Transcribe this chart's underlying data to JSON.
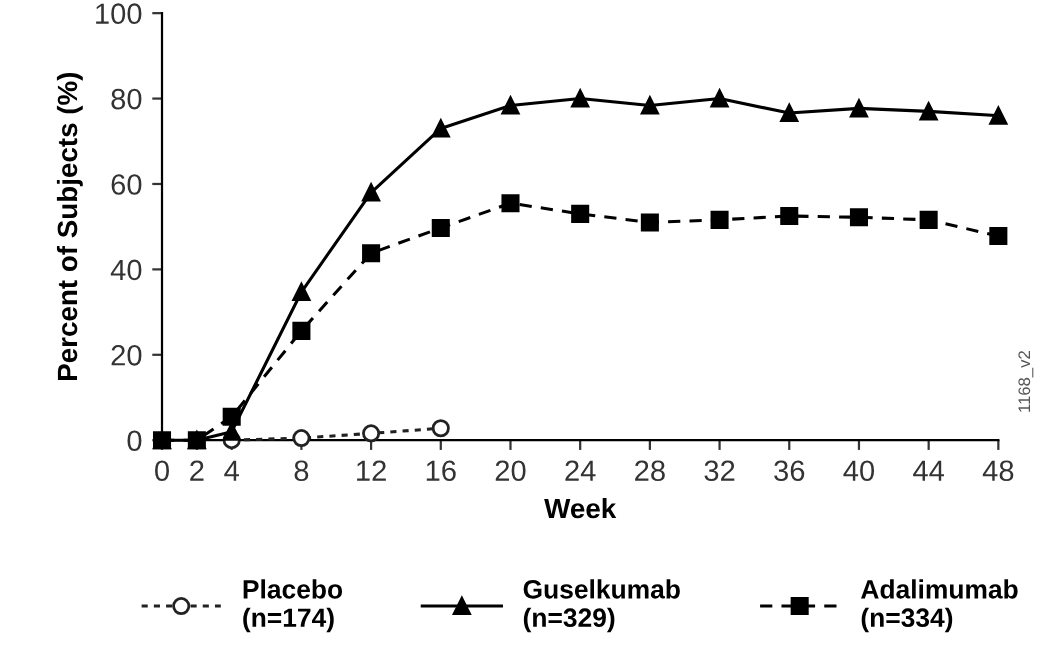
{
  "chart_data": {
    "type": "line",
    "xlabel": "Week",
    "ylabel": "Percent of Subjects (%)",
    "x": [
      0,
      2,
      4,
      8,
      12,
      16,
      20,
      24,
      28,
      32,
      36,
      40,
      44,
      48
    ],
    "series": [
      {
        "name": "Placebo\n(n=174)",
        "color": "#222222",
        "marker": "circle",
        "line_style": "dotted",
        "x": [
          4,
          8,
          12,
          16
        ],
        "values": [
          0,
          0.5,
          1.6,
          2.8
        ]
      },
      {
        "name": "Guselkumab\n(n=329)",
        "color": "#000000",
        "marker": "triangle",
        "line_style": "solid",
        "values": [
          0,
          0,
          2,
          34.7,
          58,
          73,
          78.4,
          80,
          78.4,
          80,
          76.6,
          77.7,
          77,
          76
        ]
      },
      {
        "name": "Adalimumab\n(n=334)",
        "color": "#000000",
        "marker": "square",
        "line_style": "dashed",
        "values": [
          0,
          0,
          5.5,
          25.6,
          43.8,
          49.7,
          55.5,
          53,
          51,
          51.6,
          52.5,
          52.2,
          51.6,
          47.8
        ]
      }
    ],
    "xlim": [
      0,
      48
    ],
    "xticks": [
      0,
      2,
      4,
      8,
      12,
      16,
      20,
      24,
      28,
      32,
      36,
      40,
      44,
      48
    ],
    "ylim": [
      0,
      100
    ],
    "yticks": [
      0,
      20,
      40,
      60,
      80,
      100
    ],
    "grid": false,
    "legend": "bottom",
    "annotations": [
      "1168_v2"
    ]
  }
}
